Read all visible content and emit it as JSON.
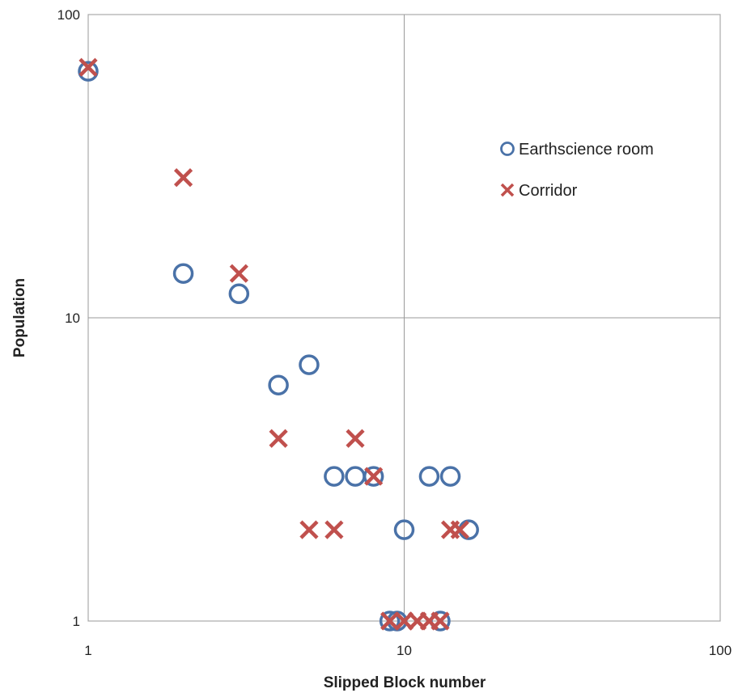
{
  "chart_data": {
    "type": "scatter",
    "title": "",
    "xlabel": "Slipped Block number",
    "ylabel": "Population",
    "x_scale": "log",
    "y_scale": "log",
    "xlim": [
      1,
      100
    ],
    "ylim": [
      1,
      100
    ],
    "x_ticks": [
      "1",
      "10",
      "100"
    ],
    "y_ticks": [
      "1",
      "10",
      "100"
    ],
    "grid": true,
    "legend_position": "upper-right inside plot",
    "series": [
      {
        "name": "Earthscience room",
        "marker": "circle",
        "color": "#4a72a8",
        "points": [
          [
            1,
            65
          ],
          [
            2,
            14
          ],
          [
            3,
            12
          ],
          [
            4,
            6
          ],
          [
            5,
            7
          ],
          [
            6,
            3
          ],
          [
            7,
            3
          ],
          [
            8,
            3
          ],
          [
            9,
            1
          ],
          [
            9.5,
            1
          ],
          [
            10,
            2
          ],
          [
            12,
            3
          ],
          [
            13,
            1
          ],
          [
            14,
            3
          ],
          [
            16,
            2
          ]
        ]
      },
      {
        "name": "Corridor",
        "marker": "x",
        "color": "#c0504d",
        "points": [
          [
            1,
            67
          ],
          [
            2,
            29
          ],
          [
            3,
            14
          ],
          [
            4,
            4
          ],
          [
            5,
            2
          ],
          [
            6,
            2
          ],
          [
            7,
            4
          ],
          [
            8,
            3
          ],
          [
            9,
            1
          ],
          [
            10,
            1
          ],
          [
            11,
            1
          ],
          [
            12,
            1
          ],
          [
            13,
            1
          ],
          [
            14,
            2
          ],
          [
            15,
            2
          ]
        ]
      }
    ]
  }
}
